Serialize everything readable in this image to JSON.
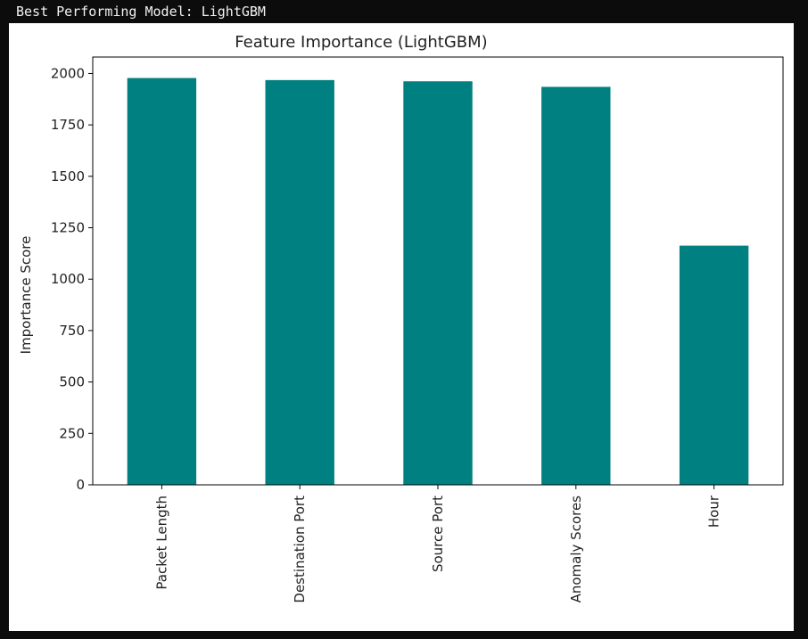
{
  "console": {
    "output": "Best Performing Model: LightGBM"
  },
  "colors": {
    "bar": "#008080",
    "background": "#0c0c0c"
  },
  "chart_data": {
    "type": "bar",
    "title": "Feature Importance (LightGBM)",
    "xlabel": "",
    "ylabel": "Importance Score",
    "categories": [
      "Packet Length",
      "Destination Port",
      "Source Port",
      "Anomaly Scores",
      "Hour"
    ],
    "values": [
      1978,
      1968,
      1962,
      1935,
      1163
    ],
    "ylim": [
      0,
      2080
    ],
    "yticks": [
      0,
      250,
      500,
      750,
      1000,
      1250,
      1500,
      1750,
      2000
    ],
    "grid": false,
    "legend": "none"
  }
}
